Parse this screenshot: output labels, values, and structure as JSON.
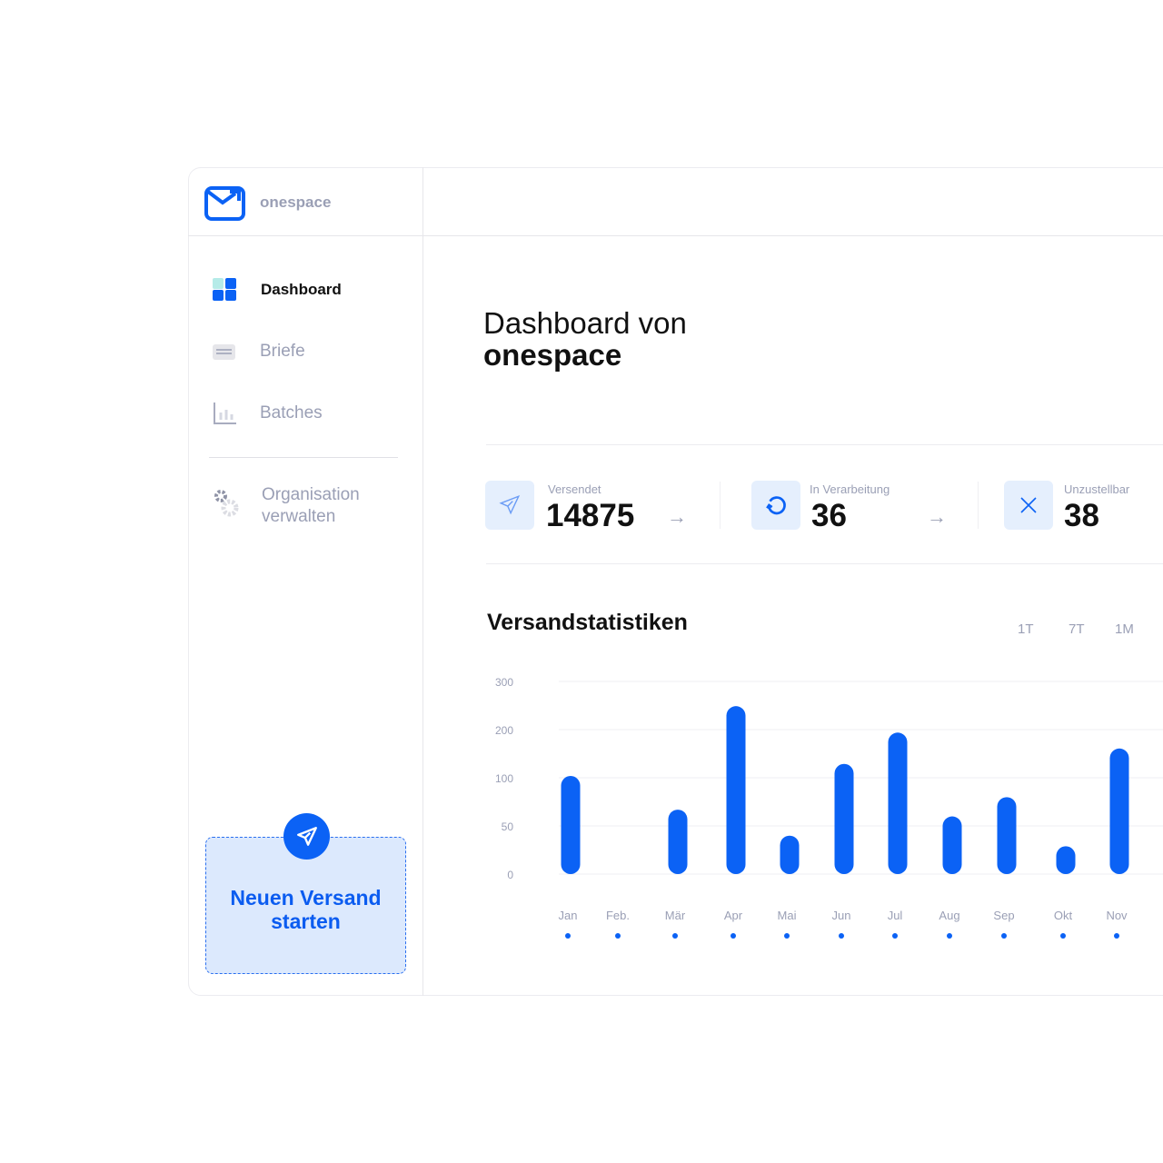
{
  "brand": "onespace",
  "colors": {
    "accent": "#0b62f5",
    "muted": "#9a9fb5",
    "tile": "#e5effd"
  },
  "sidebar": {
    "items": [
      {
        "label": "Dashboard",
        "icon": "dashboard-grid-icon",
        "active": true
      },
      {
        "label": "Briefe",
        "icon": "letter-icon"
      },
      {
        "label": "Batches",
        "icon": "bar-chart-icon"
      }
    ],
    "settings": {
      "line1": "Organisation",
      "line2": "verwalten",
      "icon": "gears-icon"
    },
    "cta": {
      "line1": "Neuen Versand",
      "line2": "starten",
      "icon": "paper-plane-icon"
    }
  },
  "main": {
    "title_line1": "Dashboard von",
    "title_line2": "onespace",
    "stats": [
      {
        "label": "Versendet",
        "value": "14875",
        "icon": "paper-plane-icon"
      },
      {
        "label": "In Verarbeitung",
        "value": "36",
        "icon": "refresh-icon"
      },
      {
        "label": "Unzustellbar",
        "value": "38",
        "icon": "close-icon"
      }
    ],
    "chart_title": "Versandstatistiken",
    "ranges": [
      "1T",
      "7T",
      "1M"
    ]
  },
  "chart_data": {
    "type": "bar",
    "categories": [
      "Jan",
      "Feb.",
      "Mär",
      "Apr",
      "Mai",
      "Jun",
      "Jul",
      "Aug",
      "Sep",
      "Okt",
      "Nov"
    ],
    "values": [
      100,
      0,
      65,
      245,
      38,
      125,
      190,
      58,
      78,
      27,
      157
    ],
    "yticks": [
      0,
      50,
      100,
      200,
      300
    ],
    "ylim": [
      0,
      300
    ],
    "grid": true,
    "color": "#0b62f5"
  }
}
